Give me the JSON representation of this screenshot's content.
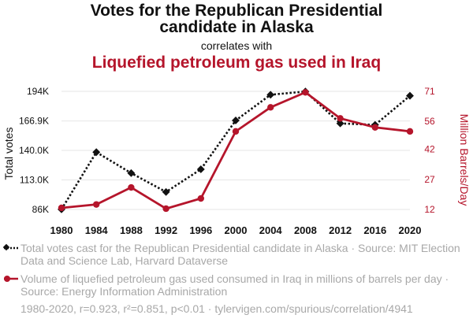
{
  "title_line1": "Votes for the Republican Presidential",
  "title_line2": "candidate in Alaska",
  "subtitle": "correlates with",
  "title2": "Liquefied petroleum gas used in Iraq",
  "legend": {
    "series1_text": "Total votes cast for the Republican Presidential candidate in Alaska · Source: MIT Election Data and Science Lab, Harvard Dataverse",
    "series2_text": "Volume of liquefied petroleum gas used consumed in Iraq in millions of barrels per day · Source: Energy Information Administration"
  },
  "footer": "1980-2020, r=0.923, r²=0.851, p<0.01 · tylervigen.com/spurious/correlation/4941",
  "colors": {
    "series1": "#111111",
    "series2": "#b5152b",
    "grid": "#e6e6e6"
  },
  "chart_data": {
    "type": "line",
    "x": [
      1980,
      1984,
      1988,
      1992,
      1996,
      2000,
      2004,
      2008,
      2012,
      2016,
      2020
    ],
    "xlabels": [
      "1980",
      "1984",
      "1988",
      "1992",
      "1996",
      "2000",
      "2004",
      "2008",
      "2012",
      "2016",
      "2020"
    ],
    "left_axis": {
      "label": "Total votes",
      "range": [
        86000,
        194000
      ],
      "ticks": [
        86000,
        113000,
        140000,
        166900,
        194000
      ],
      "tick_labels": [
        "86K",
        "113.0K",
        "140.0K",
        "166.9K",
        "194K"
      ]
    },
    "right_axis": {
      "label": "Million Barrels/Day",
      "range": [
        12,
        71
      ],
      "ticks": [
        12,
        27,
        42,
        56,
        71
      ],
      "tick_labels": [
        "12",
        "27",
        "42",
        "56",
        "71"
      ]
    },
    "series": [
      {
        "name": "Total votes cast for the Republican Presidential candidate in Alaska",
        "axis": "left",
        "marker": "diamond",
        "dash": true,
        "values": [
          86112,
          138377,
          119251,
          102000,
          122746,
          167398,
          190889,
          193841,
          164676,
          163387,
          189951
        ]
      },
      {
        "name": "Volume of liquefied petroleum gas used consumed in Iraq",
        "axis": "right",
        "marker": "circle",
        "dash": false,
        "values": [
          12.8,
          14.5,
          23,
          12.4,
          17.5,
          51,
          63,
          70.5,
          57.5,
          53,
          51
        ]
      }
    ]
  }
}
